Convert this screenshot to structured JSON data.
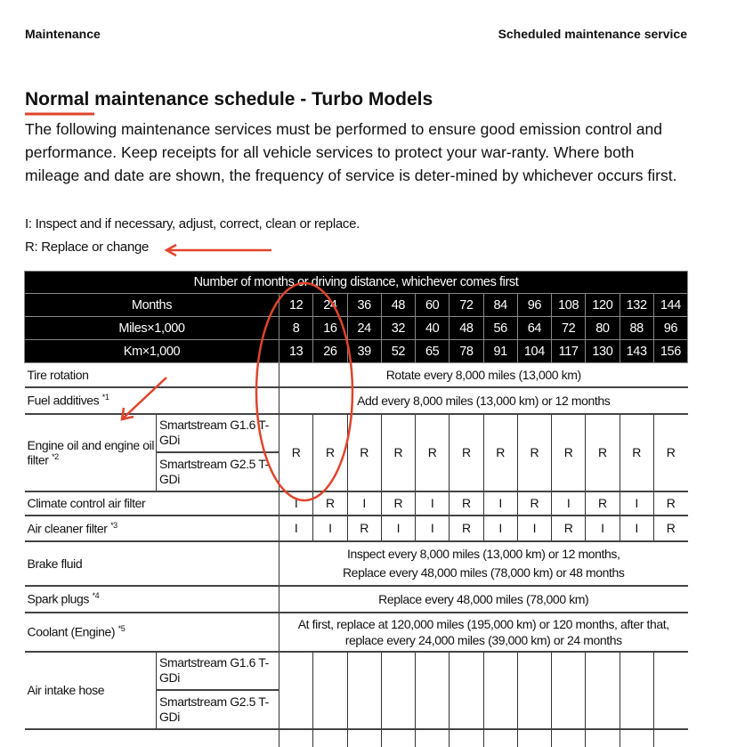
{
  "header": {
    "left": "Maintenance",
    "right": "Scheduled maintenance service"
  },
  "title": "Normal maintenance schedule - Turbo Models",
  "intro": "The following maintenance services must be performed to ensure good emission control and performance. Keep receipts for all vehicle services to protect your war-ranty. Where both mileage and date are shown, the frequency of service is deter-mined by whichever occurs first.",
  "legend": {
    "i": "I: Inspect and if necessary, adjust, correct, clean or replace.",
    "r": "R: Replace or change"
  },
  "table": {
    "caption": "Number of months or driving distance, whichever comes first",
    "months_label": "Months",
    "months": [
      "12",
      "24",
      "36",
      "48",
      "60",
      "72",
      "84",
      "96",
      "108",
      "120",
      "132",
      "144"
    ],
    "miles_label": "Miles×1,000",
    "miles": [
      "8",
      "16",
      "24",
      "32",
      "40",
      "48",
      "56",
      "64",
      "72",
      "80",
      "88",
      "96"
    ],
    "km_label": "Km×1,000",
    "km": [
      "13",
      "26",
      "39",
      "52",
      "65",
      "78",
      "91",
      "104",
      "117",
      "130",
      "143",
      "156"
    ],
    "engine_variants": [
      "Smartstream G1.6 T-GDi",
      "Smartstream G2.5 T-GDi"
    ],
    "rows": {
      "tire": {
        "label": "Tire rotation",
        "note": "",
        "text": "Rotate every 8,000 miles (13,000 km)"
      },
      "fuel": {
        "label": "Fuel additives",
        "note": "*1",
        "text": "Add every 8,000 miles (13,000 km) or 12 months"
      },
      "oil": {
        "label": "Engine oil and engine oil filter",
        "note": "*2",
        "values": [
          "R",
          "R",
          "R",
          "R",
          "R",
          "R",
          "R",
          "R",
          "R",
          "R",
          "R",
          "R"
        ]
      },
      "climate": {
        "label": "Climate control air filter",
        "note": "",
        "values": [
          "I",
          "R",
          "I",
          "R",
          "I",
          "R",
          "I",
          "R",
          "I",
          "R",
          "I",
          "R"
        ]
      },
      "aircleaner": {
        "label": "Air cleaner filter",
        "note": "*3",
        "values": [
          "I",
          "I",
          "R",
          "I",
          "I",
          "R",
          "I",
          "I",
          "R",
          "I",
          "I",
          "R"
        ]
      },
      "brake": {
        "label": "Brake fluid",
        "note": "",
        "text1": "Inspect every 8,000 miles (13,000 km) or 12 months,",
        "text2": "Replace every 48,000 miles (78,000 km) or 48 months"
      },
      "spark": {
        "label": "Spark plugs",
        "note": "*4",
        "text": "Replace every 48,000 miles (78,000 km)"
      },
      "coolant": {
        "label": "Coolant (Engine)",
        "note": "*5",
        "text1": "At first, replace at 120,000 miles (195,000 km) or 120 months, after that,",
        "text2": "replace every 24,000 miles (39,000 km) or 24 months"
      },
      "intake": {
        "label": "Air intake hose",
        "note": ""
      }
    }
  },
  "annotation_color": "#e0442a"
}
